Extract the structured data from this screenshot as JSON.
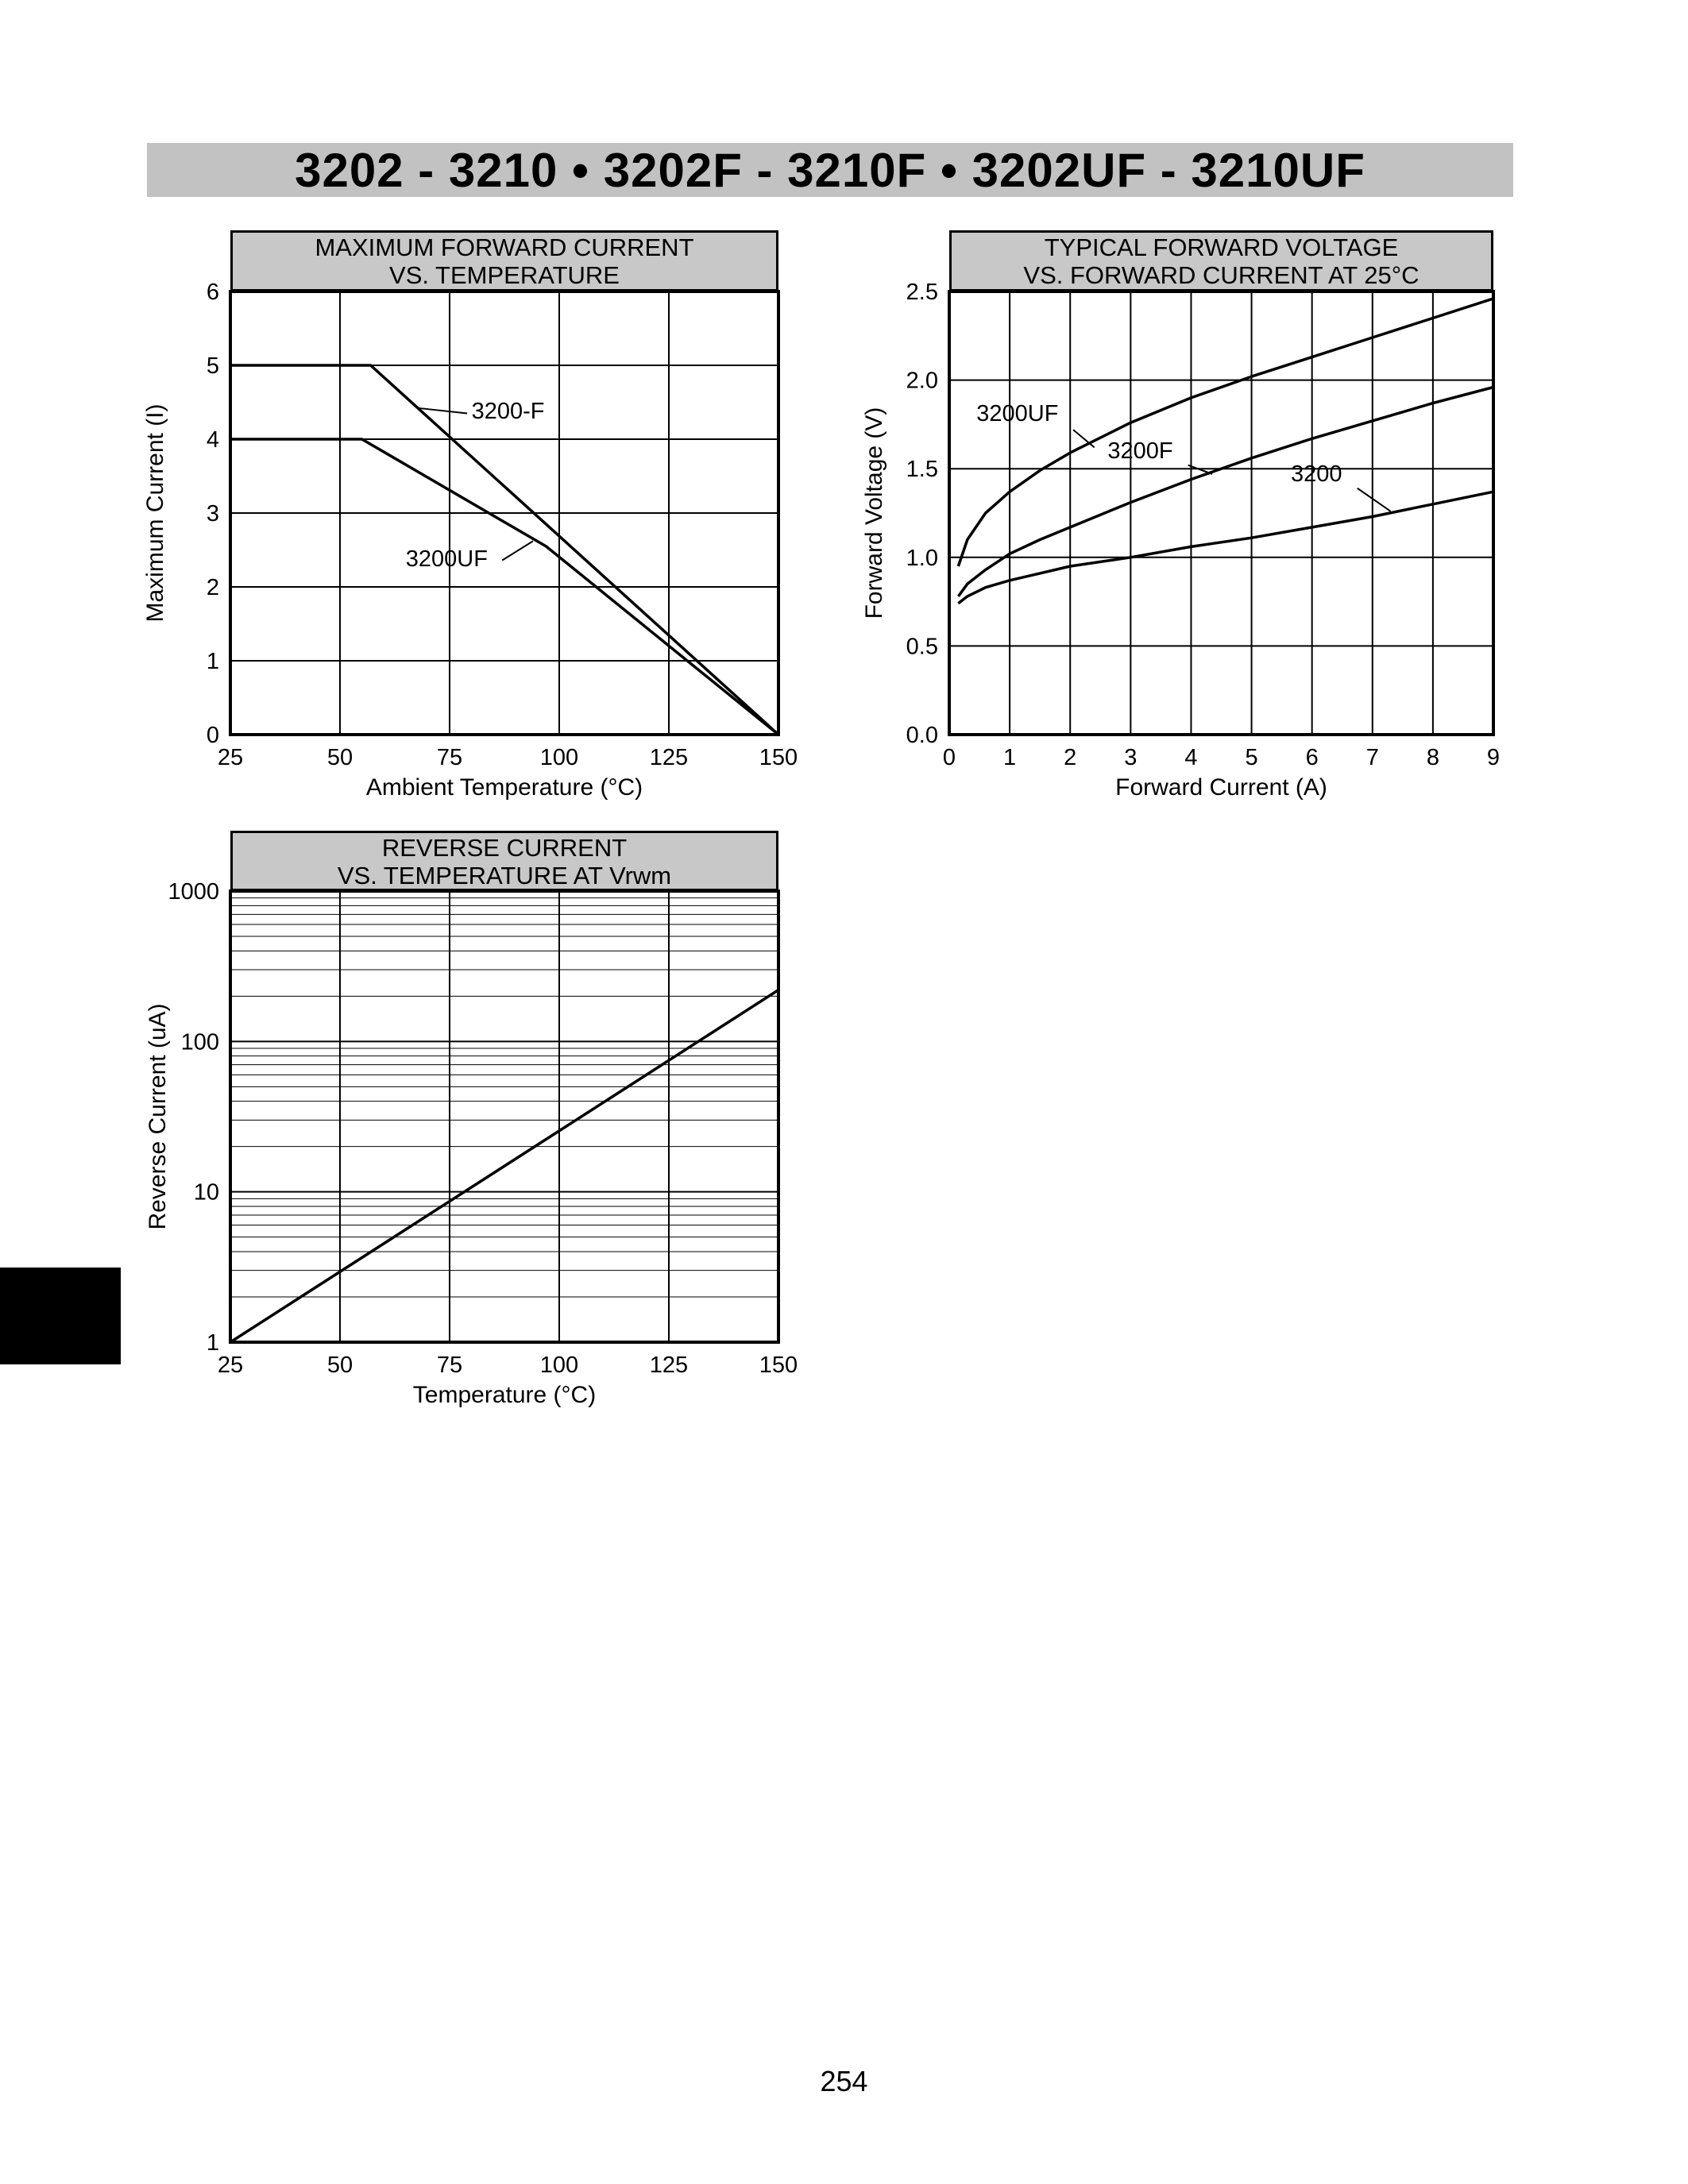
{
  "page": {
    "header_title": "3202 - 3210 • 3202F - 3210F • 3202UF - 3210UF",
    "page_number": "254"
  },
  "chart_data": [
    {
      "id": "max-forward-current-vs-temperature",
      "type": "line",
      "title_lines": [
        "MAXIMUM FORWARD CURRENT",
        "VS. TEMPERATURE"
      ],
      "xlabel": "Ambient Temperature (°C)",
      "ylabel": "Maximum Current (I)",
      "xlim": [
        25,
        150
      ],
      "ylim": [
        0,
        6
      ],
      "xticks": [
        25,
        50,
        75,
        100,
        125,
        150
      ],
      "yticks": [
        0,
        1,
        2,
        3,
        4,
        5,
        6
      ],
      "grid": true,
      "series": [
        {
          "name": "3200-F",
          "points": [
            [
              25,
              5
            ],
            [
              57,
              5
            ],
            [
              150,
              0
            ]
          ]
        },
        {
          "name": "3200UF",
          "points": [
            [
              25,
              4
            ],
            [
              55,
              4
            ],
            [
              97,
              2.55
            ],
            [
              150,
              0
            ]
          ]
        }
      ],
      "labels": [
        {
          "text": "3200-F",
          "pos": [
            80,
            4.28
          ],
          "leader": [
            [
              79,
              4.35
            ],
            [
              68,
              4.42
            ]
          ],
          "anchor": "start"
        },
        {
          "text": "3200UF",
          "pos": [
            65,
            2.28
          ],
          "leader": [
            [
              87,
              2.36
            ],
            [
              94,
              2.62
            ]
          ],
          "anchor": "start"
        }
      ]
    },
    {
      "id": "typical-forward-voltage-vs-forward-current",
      "type": "line",
      "title_lines": [
        "TYPICAL FORWARD VOLTAGE",
        "VS. FORWARD CURRENT AT 25°C"
      ],
      "xlabel": "Forward Current (A)",
      "ylabel": "Forward Voltage (V)",
      "xlim": [
        0,
        9
      ],
      "ylim": [
        0,
        2.5
      ],
      "xticks": [
        0,
        1,
        2,
        3,
        4,
        5,
        6,
        7,
        8,
        9
      ],
      "yticks": [
        {
          "v": 0,
          "label": "0.0"
        },
        {
          "v": 0.5,
          "label": "0.5"
        },
        {
          "v": 1,
          "label": "1.0"
        },
        {
          "v": 1.5,
          "label": "1.5"
        },
        {
          "v": 2,
          "label": "2.0"
        },
        {
          "v": 2.5,
          "label": "2.5"
        }
      ],
      "grid": true,
      "series": [
        {
          "name": "3200UF",
          "points": [
            [
              0.15,
              0.95
            ],
            [
              0.3,
              1.1
            ],
            [
              0.6,
              1.25
            ],
            [
              1,
              1.37
            ],
            [
              1.5,
              1.49
            ],
            [
              2,
              1.59
            ],
            [
              3,
              1.76
            ],
            [
              4,
              1.9
            ],
            [
              5,
              2.02
            ],
            [
              6,
              2.13
            ],
            [
              7,
              2.24
            ],
            [
              8,
              2.35
            ],
            [
              9,
              2.46
            ]
          ]
        },
        {
          "name": "3200F",
          "points": [
            [
              0.15,
              0.78
            ],
            [
              0.3,
              0.85
            ],
            [
              0.6,
              0.93
            ],
            [
              1,
              1.02
            ],
            [
              1.5,
              1.1
            ],
            [
              2,
              1.17
            ],
            [
              3,
              1.31
            ],
            [
              4,
              1.44
            ],
            [
              5,
              1.56
            ],
            [
              6,
              1.67
            ],
            [
              7,
              1.77
            ],
            [
              8,
              1.87
            ],
            [
              9,
              1.96
            ]
          ]
        },
        {
          "name": "3200",
          "points": [
            [
              0.15,
              0.74
            ],
            [
              0.3,
              0.78
            ],
            [
              0.6,
              0.83
            ],
            [
              1,
              0.87
            ],
            [
              1.5,
              0.91
            ],
            [
              2,
              0.95
            ],
            [
              3,
              1.0
            ],
            [
              4,
              1.06
            ],
            [
              5,
              1.11
            ],
            [
              6,
              1.17
            ],
            [
              7,
              1.23
            ],
            [
              8,
              1.3
            ],
            [
              9,
              1.37
            ]
          ]
        }
      ],
      "labels": [
        {
          "text": "3200UF",
          "pos": [
            0.45,
            1.77
          ],
          "leader": [
            [
              2.05,
              1.72
            ],
            [
              2.4,
              1.62
            ]
          ],
          "anchor": "start"
        },
        {
          "text": "3200F",
          "pos": [
            2.62,
            1.56
          ],
          "leader": [
            [
              3.95,
              1.52
            ],
            [
              4.35,
              1.47
            ]
          ],
          "anchor": "start"
        },
        {
          "text": "3200",
          "pos": [
            5.65,
            1.43
          ],
          "leader": [
            [
              6.75,
              1.39
            ],
            [
              7.3,
              1.26
            ]
          ],
          "anchor": "start"
        }
      ]
    },
    {
      "id": "reverse-current-vs-temperature",
      "type": "line",
      "yscale": "log",
      "title_lines": [
        "REVERSE CURRENT",
        "VS. TEMPERATURE AT Vrwm"
      ],
      "xlabel": "Temperature (°C)",
      "ylabel": "Reverse Current (uA)",
      "xlim": [
        25,
        150
      ],
      "ylim": [
        1,
        1000
      ],
      "xticks": [
        25,
        50,
        75,
        100,
        125,
        150
      ],
      "yticks": [
        1,
        10,
        100,
        1000
      ],
      "grid": true,
      "series": [
        {
          "name": "reverse-current",
          "points": [
            [
              25,
              1
            ],
            [
              150,
              220
            ]
          ]
        }
      ],
      "labels": []
    }
  ]
}
